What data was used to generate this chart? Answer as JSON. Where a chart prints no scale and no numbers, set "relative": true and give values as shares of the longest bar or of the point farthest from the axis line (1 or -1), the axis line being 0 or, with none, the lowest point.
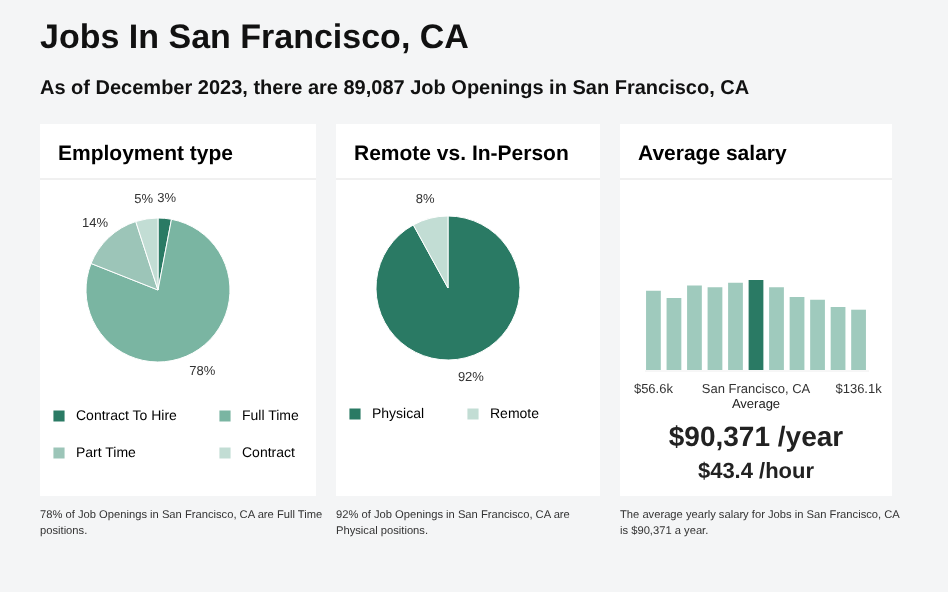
{
  "chart_data": [
    {
      "type": "pie",
      "title": "Employment type",
      "categories": [
        "Contract To Hire",
        "Full Time",
        "Part Time",
        "Contract"
      ],
      "values": [
        3,
        78,
        14,
        5
      ],
      "colors": [
        "#2a7a64",
        "#7ab5a2",
        "#9cc5b8",
        "#c2ddd4"
      ],
      "value_labels": [
        "3%",
        "78%",
        "14%",
        "5%"
      ],
      "legend": "bottom",
      "annotations": [
        "Jobs In San Francisco, CA",
        "As of December 2023, there are 89,087 Job Openings in San Francisco, CA",
        "78% of Job Openings in San Francisco, CA are Full Time positions."
      ]
    },
    {
      "type": "pie",
      "title": "Remote vs. In-Person",
      "categories": [
        "Physical",
        "Remote"
      ],
      "values": [
        92,
        8
      ],
      "colors": [
        "#2a7a64",
        "#c2ddd4"
      ],
      "value_labels": [
        "92%",
        "8%"
      ],
      "legend": "bottom",
      "annotations": [
        "92% of Job Openings in San Francisco, CA are Physical positions."
      ]
    },
    {
      "type": "bar",
      "title": "Average salary",
      "relative": true,
      "categories": [
        "$56.6k",
        null,
        null,
        null,
        null,
        "San Francisco, CA",
        null,
        null,
        null,
        null,
        "$136.1k"
      ],
      "values": [
        0.88,
        0.8,
        0.94,
        0.92,
        0.97,
        1,
        0.92,
        0.81,
        0.78,
        0.7,
        0.67
      ],
      "colors": [
        "#9fcabd",
        "#9fcabd",
        "#9fcabd",
        "#9fcabd",
        "#9fcabd",
        "#2a7a64",
        "#9fcabd",
        "#9fcabd",
        "#9fcabd",
        "#9fcabd",
        "#9fcabd"
      ],
      "annotations": [
        "Average",
        "$90,371 /year",
        "$43.4 /hour",
        "The average yearly salary for Jobs in San Francisco, CA is $90,371 a year."
      ]
    }
  ]
}
